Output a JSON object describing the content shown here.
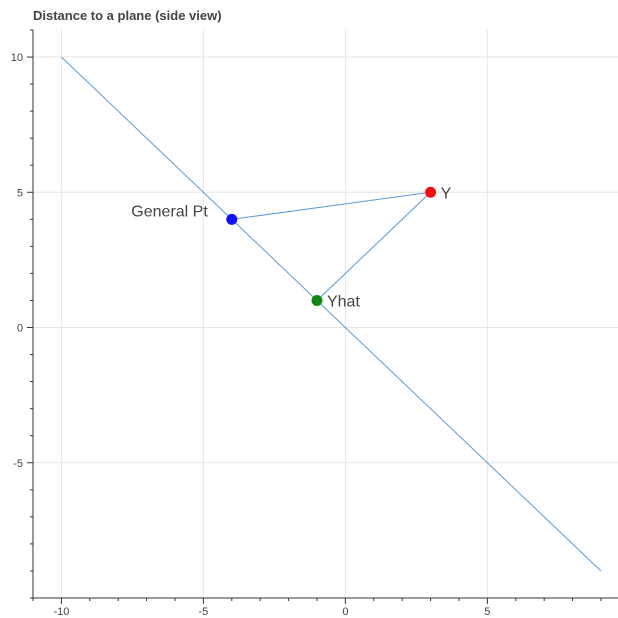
{
  "chart_data": {
    "type": "scatter",
    "title": "Distance to a plane (side view)",
    "xlabel": "",
    "ylabel": "",
    "xlim": [
      -11,
      9.6
    ],
    "ylim": [
      -10,
      11
    ],
    "x_ticks": [
      -10,
      -5,
      0,
      5
    ],
    "y_ticks": [
      -5,
      0,
      5,
      10
    ],
    "grid": true,
    "colors": {
      "line": "#5b9bd5",
      "grid": "#e6e6e6",
      "axis": "#333333"
    },
    "plane_line": {
      "x": [
        -10,
        9
      ],
      "y": [
        10,
        -9
      ]
    },
    "connector_segments": [
      {
        "from": [
          -4,
          4
        ],
        "to": [
          3,
          5
        ]
      },
      {
        "from": [
          -1,
          1
        ],
        "to": [
          3,
          5
        ]
      }
    ],
    "points": [
      {
        "label": "Y",
        "x": 3,
        "y": 5,
        "color": "#ee1111",
        "label_side": "right"
      },
      {
        "label": "General Pt",
        "x": -4,
        "y": 4,
        "color": "#1111ee",
        "label_side": "left"
      },
      {
        "label": "Yhat",
        "x": -1,
        "y": 1,
        "color": "#118811",
        "label_side": "right"
      }
    ]
  }
}
